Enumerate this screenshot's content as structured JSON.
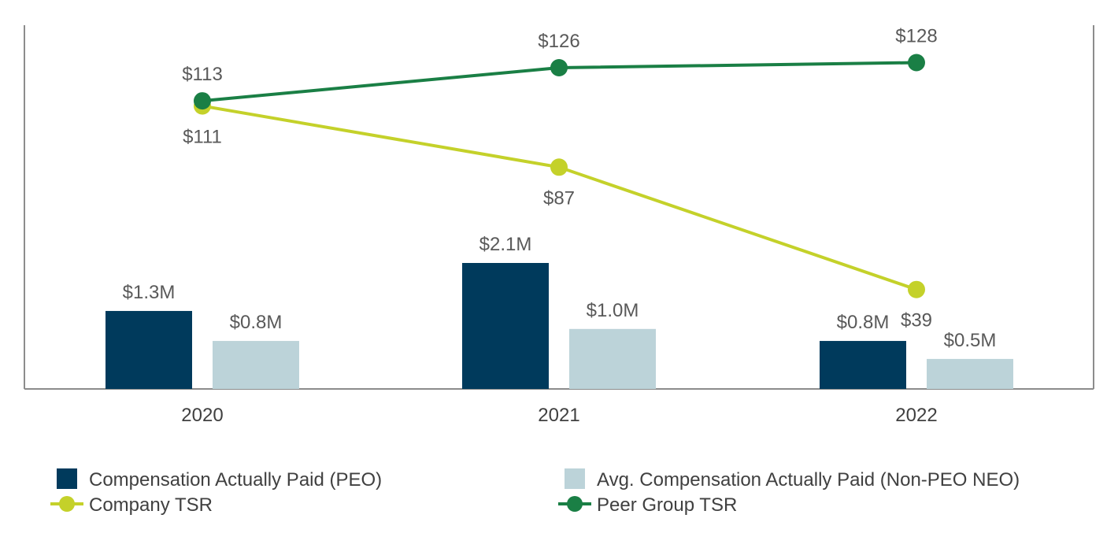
{
  "chart_data": {
    "type": "bar",
    "categories": [
      "2020",
      "2021",
      "2022"
    ],
    "bar_series": [
      {
        "name": "Compensation Actually Paid (PEO)",
        "values": [
          1.3,
          2.1,
          0.8
        ],
        "labels": [
          "$1.3M",
          "$2.1M",
          "$0.8M"
        ],
        "color": "#003a5c"
      },
      {
        "name": "Avg. Compensation Actually Paid (Non-PEO NEO)",
        "values": [
          0.8,
          1.0,
          0.5
        ],
        "labels": [
          "$0.8M",
          "$1.0M",
          "$0.5M"
        ],
        "color": "#bcd3d9"
      }
    ],
    "line_series": [
      {
        "name": "Company TSR",
        "values": [
          111,
          87,
          39
        ],
        "labels": [
          "$111",
          "$87",
          "$39"
        ],
        "label_positions": [
          "below",
          "below",
          "below"
        ],
        "color": "#c4d12a"
      },
      {
        "name": "Peer Group TSR",
        "values": [
          113,
          126,
          128
        ],
        "labels": [
          "$113",
          "$126",
          "$128"
        ],
        "label_positions": [
          "above",
          "above",
          "above"
        ],
        "color": "#1a7f45"
      }
    ],
    "bar_axis": {
      "ylim": [
        0,
        2.1
      ]
    },
    "line_axis": {
      "ylim": [
        0,
        126
      ]
    },
    "grid": false,
    "legend_position": "bottom",
    "title": "",
    "xlabel": "",
    "ylabel": ""
  }
}
